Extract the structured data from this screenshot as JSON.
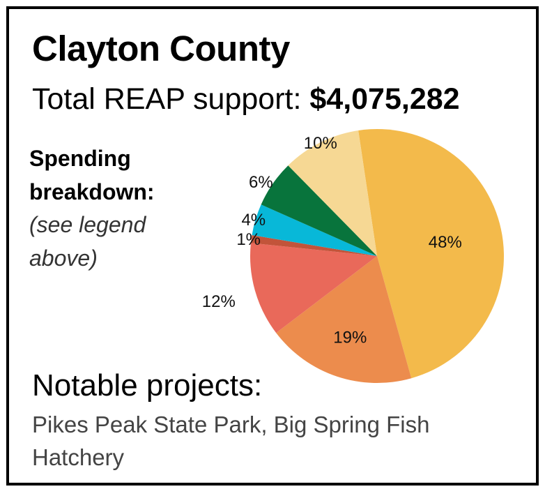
{
  "header": {
    "title": "Clayton County",
    "subtitle_prefix": "Total REAP support: ",
    "subtitle_amount": "$4,075,282"
  },
  "breakdown": {
    "heading_line1": "Spending",
    "heading_line2": "breakdown:",
    "note": "(see legend above)"
  },
  "projects": {
    "heading": "Notable projects:",
    "list": "Pikes Peak State Park, Big Spring Fish Hatchery"
  },
  "chart_data": {
    "type": "pie",
    "title": "",
    "slices": [
      {
        "value": 48,
        "label": "48%",
        "color": "#f3ba4b"
      },
      {
        "value": 19,
        "label": "19%",
        "color": "#ec8c4d"
      },
      {
        "value": 12,
        "label": "12%",
        "color": "#e9695a"
      },
      {
        "value": 1,
        "label": "1%",
        "color": "#c2543a"
      },
      {
        "value": 4,
        "label": "4%",
        "color": "#08b8d8"
      },
      {
        "value": 6,
        "label": "6%",
        "color": "#08743c"
      },
      {
        "value": 10,
        "label": "10%",
        "color": "#f6d894"
      }
    ]
  }
}
